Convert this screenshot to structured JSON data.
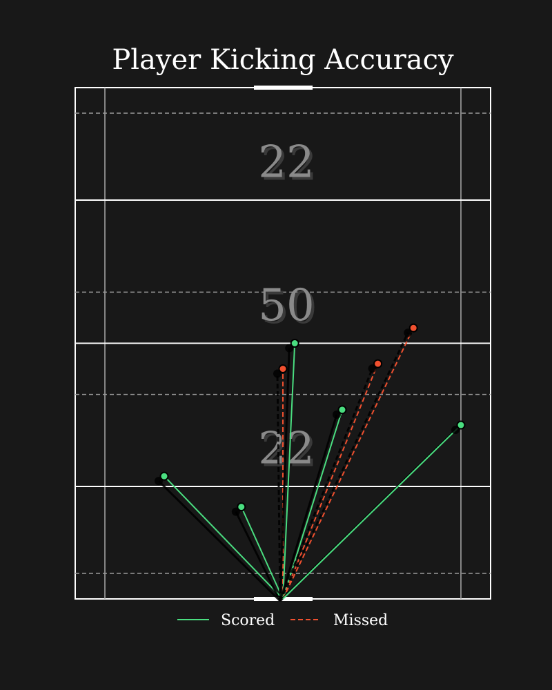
{
  "colors": {
    "background": "#181818",
    "scored": "#4ade80",
    "missed": "#f0502f",
    "field_line": "#ffffff",
    "dashed_line": "#9a9a9a",
    "zone_label": "#8a8a8a"
  },
  "chart_data": {
    "type": "line",
    "title": "Player Kicking Accuracy",
    "xlabel": "",
    "ylabel": "",
    "xlim": [
      0,
      70
    ],
    "ylim": [
      0,
      100
    ],
    "grid": false,
    "legend_position": "bottom-center",
    "zone_labels": [
      {
        "text": "22",
        "y": 82.5
      },
      {
        "text": "50",
        "y": 54.5
      },
      {
        "text": "22",
        "y": 26.5
      }
    ],
    "origin": {
      "x": 35,
      "y": 0
    },
    "kicks": [
      {
        "x": 15,
        "y": 24,
        "result": "Scored"
      },
      {
        "x": 28,
        "y": 18,
        "result": "Scored"
      },
      {
        "x": 35,
        "y": 45,
        "result": "Missed"
      },
      {
        "x": 37,
        "y": 50,
        "result": "Scored"
      },
      {
        "x": 45,
        "y": 37,
        "result": "Scored"
      },
      {
        "x": 51,
        "y": 46,
        "result": "Missed"
      },
      {
        "x": 57,
        "y": 53,
        "result": "Missed"
      },
      {
        "x": 65,
        "y": 34,
        "result": "Scored"
      }
    ],
    "series": [
      {
        "name": "Scored",
        "style": "solid"
      },
      {
        "name": "Missed",
        "style": "dashed"
      }
    ]
  }
}
